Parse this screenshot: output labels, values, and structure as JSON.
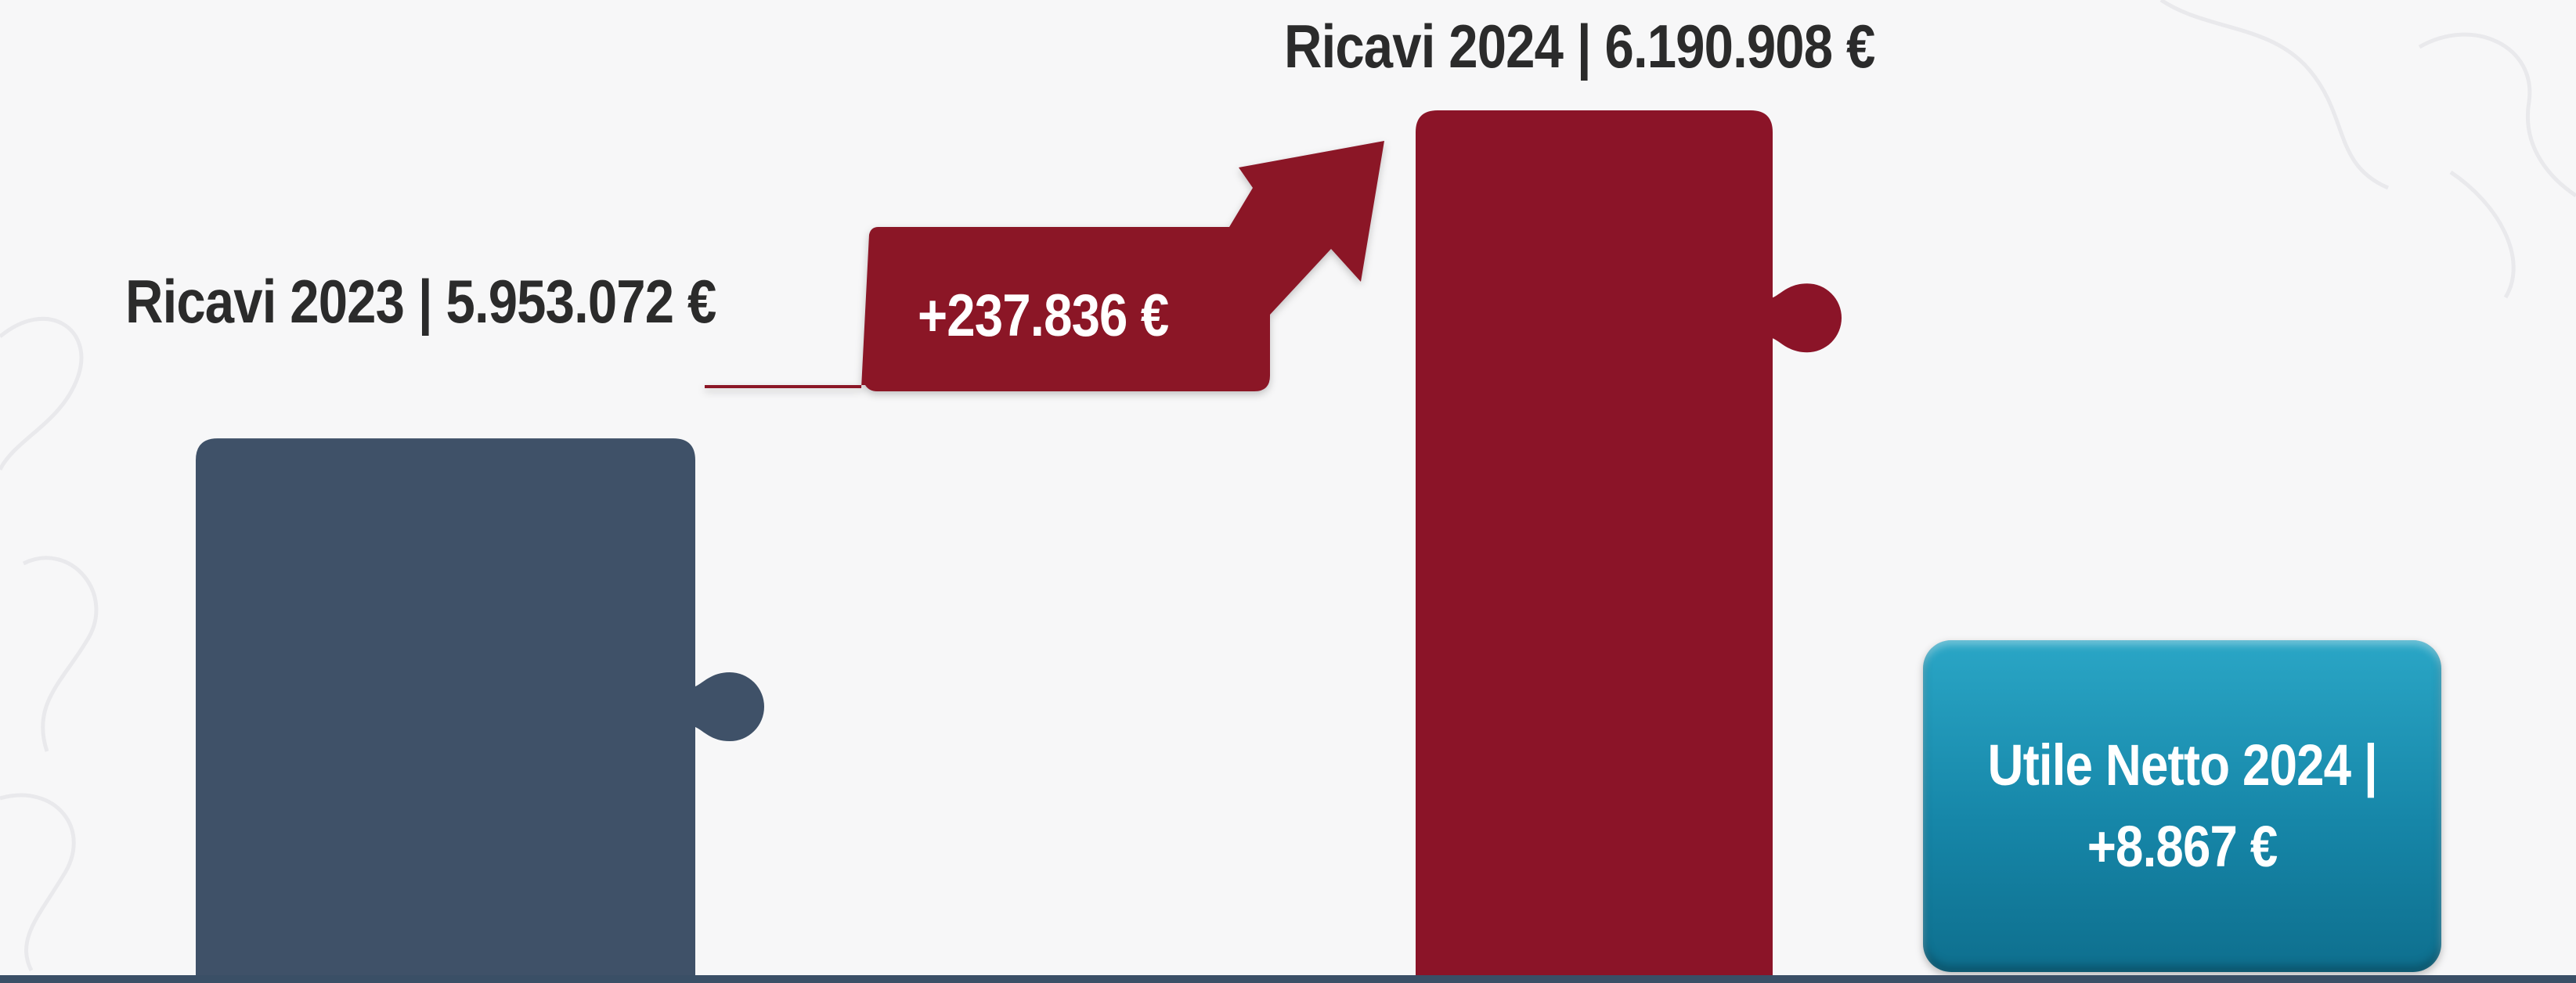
{
  "chart_data": {
    "type": "bar",
    "categories": [
      "Ricavi 2023",
      "Ricavi 2024",
      "Utile Netto 2024"
    ],
    "values": [
      5953072,
      6190908,
      8867
    ],
    "labels": {
      "ricavi_2023": "Ricavi 2023 | 5.953.072 €",
      "ricavi_2024": "Ricavi 2024 | 6.190.908 €",
      "delta": "+237.836 €",
      "utile_line1": "Utile Netto 2024 |",
      "utile_line2": "+8.867 €"
    },
    "delta_value": 237836,
    "colors": {
      "ricavi_2023": "#3f5168",
      "ricavi_2024": "#8b1428",
      "arrow": "#8b1428",
      "utile": "#1686a8",
      "baseline": "#3a4f66"
    }
  }
}
